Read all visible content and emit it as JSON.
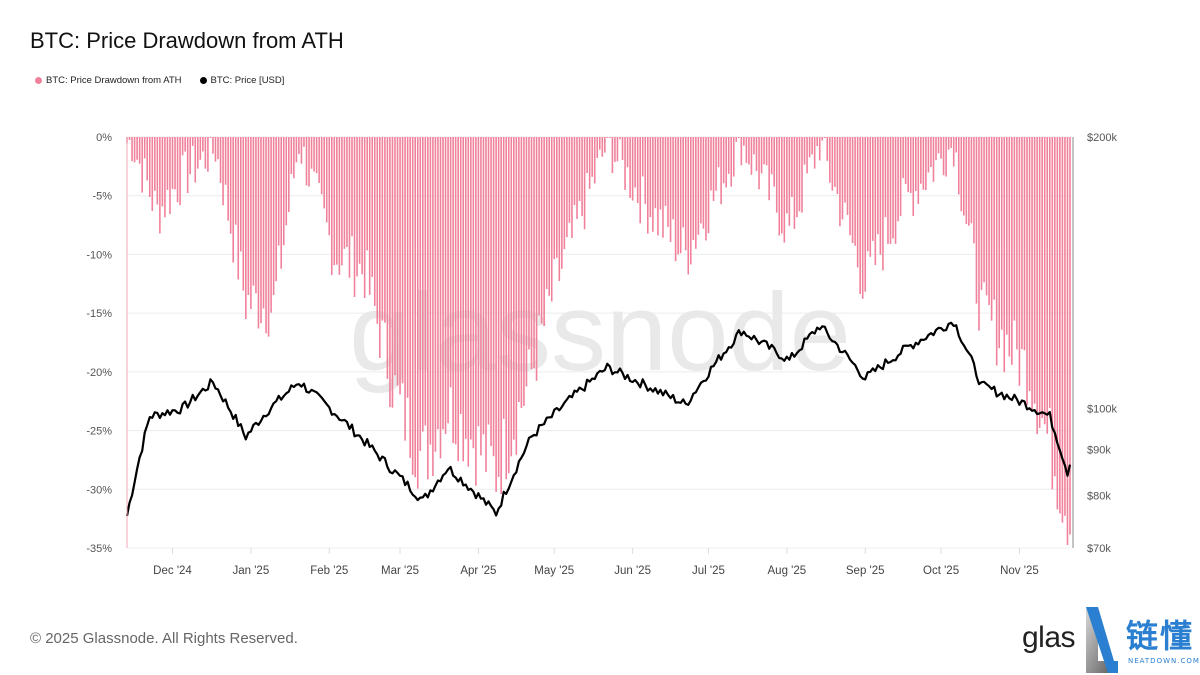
{
  "header": {
    "title": "BTC: Price Drawdown from ATH"
  },
  "legend": [
    {
      "label": "BTC: Price Drawdown from ATH",
      "color": "#f0819b"
    },
    {
      "label": "BTC: Price [USD]",
      "color": "#000000"
    }
  ],
  "watermark": "glassnode",
  "footer": {
    "copyright": "© 2025 Glassnode. All Rights Reserved."
  },
  "brand": {
    "text": "glas",
    "cn": "链懂",
    "url": "NEATDOWN.COM",
    "accent": "#2a7fd1"
  },
  "chart_data": {
    "type": "bar+line",
    "title": "BTC: Price Drawdown from ATH",
    "x_range": [
      "2024-11-13",
      "2025-11-21"
    ],
    "x_ticks": [
      "Dec '24",
      "Jan '25",
      "Feb '25",
      "Mar '25",
      "Apr '25",
      "May '25",
      "Jun '25",
      "Jul '25",
      "Aug '25",
      "Sep '25",
      "Oct '25",
      "Nov '25"
    ],
    "y_left": {
      "label": "Drawdown",
      "ticks": [
        "0%",
        "-5%",
        "-10%",
        "-15%",
        "-20%",
        "-25%",
        "-30%",
        "-35%"
      ],
      "range": [
        -35,
        0
      ]
    },
    "y_right": {
      "label": "Price [USD]",
      "scale": "log",
      "ticks": [
        "$200k",
        "$100k",
        "$90k",
        "$80k",
        "$70k"
      ],
      "tick_values": [
        200000,
        100000,
        90000,
        80000,
        70000
      ],
      "range": [
        70000,
        200000
      ]
    },
    "grid": true,
    "legend_position": "top-left",
    "series": [
      {
        "name": "BTC: Price Drawdown from ATH",
        "type": "bar",
        "color": "#f0819b",
        "unit": "%",
        "monthly_points": [
          {
            "x": "2024-11-15",
            "v": -0.5
          },
          {
            "x": "2024-11-25",
            "v": -6.5
          },
          {
            "x": "2024-12-05",
            "v": -3.5
          },
          {
            "x": "2024-12-18",
            "v": -1.0
          },
          {
            "x": "2024-12-30",
            "v": -14.0
          },
          {
            "x": "2025-01-10",
            "v": -14.5
          },
          {
            "x": "2025-01-20",
            "v": -0.5
          },
          {
            "x": "2025-02-03",
            "v": -10.0
          },
          {
            "x": "2025-02-15",
            "v": -11.5
          },
          {
            "x": "2025-02-28",
            "v": -22.5
          },
          {
            "x": "2025-03-10",
            "v": -27.5
          },
          {
            "x": "2025-03-20",
            "v": -23.0
          },
          {
            "x": "2025-04-08",
            "v": -28.5
          },
          {
            "x": "2025-04-20",
            "v": -21.5
          },
          {
            "x": "2025-05-01",
            "v": -13.0
          },
          {
            "x": "2025-05-22",
            "v": -0.5
          },
          {
            "x": "2025-06-05",
            "v": -5.5
          },
          {
            "x": "2025-06-22",
            "v": -10.0
          },
          {
            "x": "2025-07-14",
            "v": -0.5
          },
          {
            "x": "2025-08-02",
            "v": -8.0
          },
          {
            "x": "2025-08-14",
            "v": -0.5
          },
          {
            "x": "2025-09-01",
            "v": -12.5
          },
          {
            "x": "2025-09-15",
            "v": -6.0
          },
          {
            "x": "2025-10-06",
            "v": -0.5
          },
          {
            "x": "2025-10-17",
            "v": -15.0
          },
          {
            "x": "2025-11-05",
            "v": -20.0
          },
          {
            "x": "2025-11-21",
            "v": -32.5
          }
        ]
      },
      {
        "name": "BTC: Price [USD]",
        "type": "line",
        "color": "#000000",
        "unit": "USD",
        "monthly_points": [
          {
            "x": "2024-11-13",
            "v": 76000
          },
          {
            "x": "2024-11-22",
            "v": 98000
          },
          {
            "x": "2024-12-05",
            "v": 100000
          },
          {
            "x": "2024-12-17",
            "v": 107000
          },
          {
            "x": "2024-12-30",
            "v": 93000
          },
          {
            "x": "2025-01-07",
            "v": 99000
          },
          {
            "x": "2025-01-20",
            "v": 107000
          },
          {
            "x": "2025-02-03",
            "v": 99000
          },
          {
            "x": "2025-02-25",
            "v": 86000
          },
          {
            "x": "2025-03-10",
            "v": 79000
          },
          {
            "x": "2025-03-20",
            "v": 86000
          },
          {
            "x": "2025-04-08",
            "v": 76500
          },
          {
            "x": "2025-04-22",
            "v": 93000
          },
          {
            "x": "2025-05-10",
            "v": 104000
          },
          {
            "x": "2025-05-22",
            "v": 111000
          },
          {
            "x": "2025-06-22",
            "v": 101000
          },
          {
            "x": "2025-07-14",
            "v": 122000
          },
          {
            "x": "2025-08-02",
            "v": 113000
          },
          {
            "x": "2025-08-14",
            "v": 123500
          },
          {
            "x": "2025-09-01",
            "v": 108000
          },
          {
            "x": "2025-09-18",
            "v": 117000
          },
          {
            "x": "2025-10-06",
            "v": 125000
          },
          {
            "x": "2025-10-17",
            "v": 106000
          },
          {
            "x": "2025-11-04",
            "v": 101000
          },
          {
            "x": "2025-11-13",
            "v": 98000
          },
          {
            "x": "2025-11-20",
            "v": 85000
          },
          {
            "x": "2025-11-21",
            "v": 87000
          }
        ]
      }
    ]
  }
}
